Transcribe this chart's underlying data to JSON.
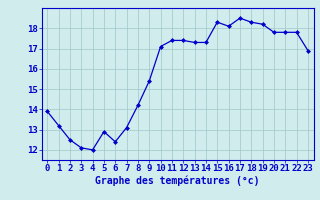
{
  "x": [
    0,
    1,
    2,
    3,
    4,
    5,
    6,
    7,
    8,
    9,
    10,
    11,
    12,
    13,
    14,
    15,
    16,
    17,
    18,
    19,
    20,
    21,
    22,
    23
  ],
  "y": [
    13.9,
    13.2,
    12.5,
    12.1,
    12.0,
    12.9,
    12.4,
    13.1,
    14.2,
    15.4,
    17.1,
    17.4,
    17.4,
    17.3,
    17.3,
    18.3,
    18.1,
    18.5,
    18.3,
    18.2,
    17.8,
    17.8,
    17.8,
    16.9
  ],
  "xlabel": "Graphe des températures (°c)",
  "xlim": [
    -0.5,
    23.5
  ],
  "ylim": [
    11.5,
    19.0
  ],
  "yticks": [
    12,
    13,
    14,
    15,
    16,
    17,
    18
  ],
  "xticks": [
    0,
    1,
    2,
    3,
    4,
    5,
    6,
    7,
    8,
    9,
    10,
    11,
    12,
    13,
    14,
    15,
    16,
    17,
    18,
    19,
    20,
    21,
    22,
    23
  ],
  "line_color": "#0000cc",
  "marker": "D",
  "marker_size": 2.0,
  "bg_color": "#d0ecec",
  "grid_color": "#a0c8c8",
  "axis_label_color": "#0000cc",
  "tick_label_color": "#0000cc",
  "spine_color": "#0000cc",
  "xlabel_fontsize": 7.0,
  "tick_fontsize": 6.5,
  "linewidth": 0.9
}
